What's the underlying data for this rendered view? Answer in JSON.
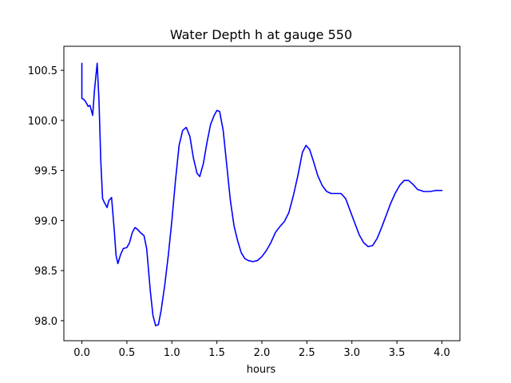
{
  "chart_data": {
    "type": "line",
    "title": "Water Depth h at gauge 550",
    "xlabel": "hours",
    "ylabel": "",
    "xlim": [
      -0.2,
      4.2
    ],
    "ylim": [
      97.8,
      100.74
    ],
    "grid": false,
    "legend": "none",
    "x_ticks": [
      0.0,
      0.5,
      1.0,
      1.5,
      2.0,
      2.5,
      3.0,
      3.5,
      4.0
    ],
    "x_tick_labels": [
      "0.0",
      "0.5",
      "1.0",
      "1.5",
      "2.0",
      "2.5",
      "3.0",
      "3.5",
      "4.0"
    ],
    "y_ticks": [
      98.0,
      98.5,
      99.0,
      99.5,
      100.0,
      100.5
    ],
    "y_tick_labels": [
      "98.0",
      "98.5",
      "99.0",
      "99.5",
      "100.0",
      "100.5"
    ],
    "series": [
      {
        "name": "",
        "color": "#0000ff",
        "points": [
          [
            0.0,
            100.57
          ],
          [
            0.0,
            100.22
          ],
          [
            0.02,
            100.21
          ],
          [
            0.04,
            100.19
          ],
          [
            0.07,
            100.14
          ],
          [
            0.09,
            100.15
          ],
          [
            0.12,
            100.05
          ],
          [
            0.14,
            100.3
          ],
          [
            0.17,
            100.57
          ],
          [
            0.19,
            100.2
          ],
          [
            0.21,
            99.6
          ],
          [
            0.23,
            99.22
          ],
          [
            0.25,
            99.18
          ],
          [
            0.28,
            99.13
          ],
          [
            0.3,
            99.2
          ],
          [
            0.33,
            99.23
          ],
          [
            0.36,
            98.9
          ],
          [
            0.38,
            98.65
          ],
          [
            0.4,
            98.57
          ],
          [
            0.43,
            98.66
          ],
          [
            0.46,
            98.72
          ],
          [
            0.5,
            98.73
          ],
          [
            0.53,
            98.78
          ],
          [
            0.56,
            98.88
          ],
          [
            0.59,
            98.93
          ],
          [
            0.62,
            98.91
          ],
          [
            0.65,
            98.88
          ],
          [
            0.69,
            98.85
          ],
          [
            0.72,
            98.72
          ],
          [
            0.76,
            98.3
          ],
          [
            0.79,
            98.05
          ],
          [
            0.82,
            97.95
          ],
          [
            0.85,
            97.96
          ],
          [
            0.88,
            98.1
          ],
          [
            0.92,
            98.35
          ],
          [
            0.96,
            98.65
          ],
          [
            1.0,
            99.0
          ],
          [
            1.04,
            99.4
          ],
          [
            1.08,
            99.75
          ],
          [
            1.12,
            99.9
          ],
          [
            1.16,
            99.93
          ],
          [
            1.2,
            99.84
          ],
          [
            1.24,
            99.62
          ],
          [
            1.28,
            99.47
          ],
          [
            1.31,
            99.44
          ],
          [
            1.35,
            99.57
          ],
          [
            1.39,
            99.78
          ],
          [
            1.43,
            99.96
          ],
          [
            1.47,
            100.05
          ],
          [
            1.5,
            100.1
          ],
          [
            1.53,
            100.09
          ],
          [
            1.57,
            99.9
          ],
          [
            1.61,
            99.55
          ],
          [
            1.65,
            99.2
          ],
          [
            1.69,
            98.95
          ],
          [
            1.73,
            98.8
          ],
          [
            1.77,
            98.68
          ],
          [
            1.81,
            98.62
          ],
          [
            1.85,
            98.6
          ],
          [
            1.9,
            98.59
          ],
          [
            1.95,
            98.6
          ],
          [
            2.0,
            98.64
          ],
          [
            2.05,
            98.7
          ],
          [
            2.1,
            98.78
          ],
          [
            2.15,
            98.88
          ],
          [
            2.2,
            98.94
          ],
          [
            2.25,
            98.99
          ],
          [
            2.3,
            99.08
          ],
          [
            2.35,
            99.25
          ],
          [
            2.4,
            99.45
          ],
          [
            2.45,
            99.68
          ],
          [
            2.49,
            99.75
          ],
          [
            2.53,
            99.71
          ],
          [
            2.57,
            99.6
          ],
          [
            2.62,
            99.45
          ],
          [
            2.67,
            99.35
          ],
          [
            2.72,
            99.29
          ],
          [
            2.77,
            99.27
          ],
          [
            2.82,
            99.27
          ],
          [
            2.88,
            99.27
          ],
          [
            2.93,
            99.22
          ],
          [
            2.98,
            99.1
          ],
          [
            3.03,
            98.98
          ],
          [
            3.08,
            98.86
          ],
          [
            3.13,
            98.78
          ],
          [
            3.18,
            98.74
          ],
          [
            3.23,
            98.75
          ],
          [
            3.28,
            98.82
          ],
          [
            3.33,
            98.93
          ],
          [
            3.38,
            99.05
          ],
          [
            3.43,
            99.17
          ],
          [
            3.48,
            99.27
          ],
          [
            3.53,
            99.35
          ],
          [
            3.58,
            99.4
          ],
          [
            3.63,
            99.4
          ],
          [
            3.68,
            99.36
          ],
          [
            3.73,
            99.31
          ],
          [
            3.8,
            99.29
          ],
          [
            3.87,
            99.29
          ],
          [
            3.93,
            99.3
          ],
          [
            4.0,
            99.3
          ]
        ]
      }
    ]
  }
}
